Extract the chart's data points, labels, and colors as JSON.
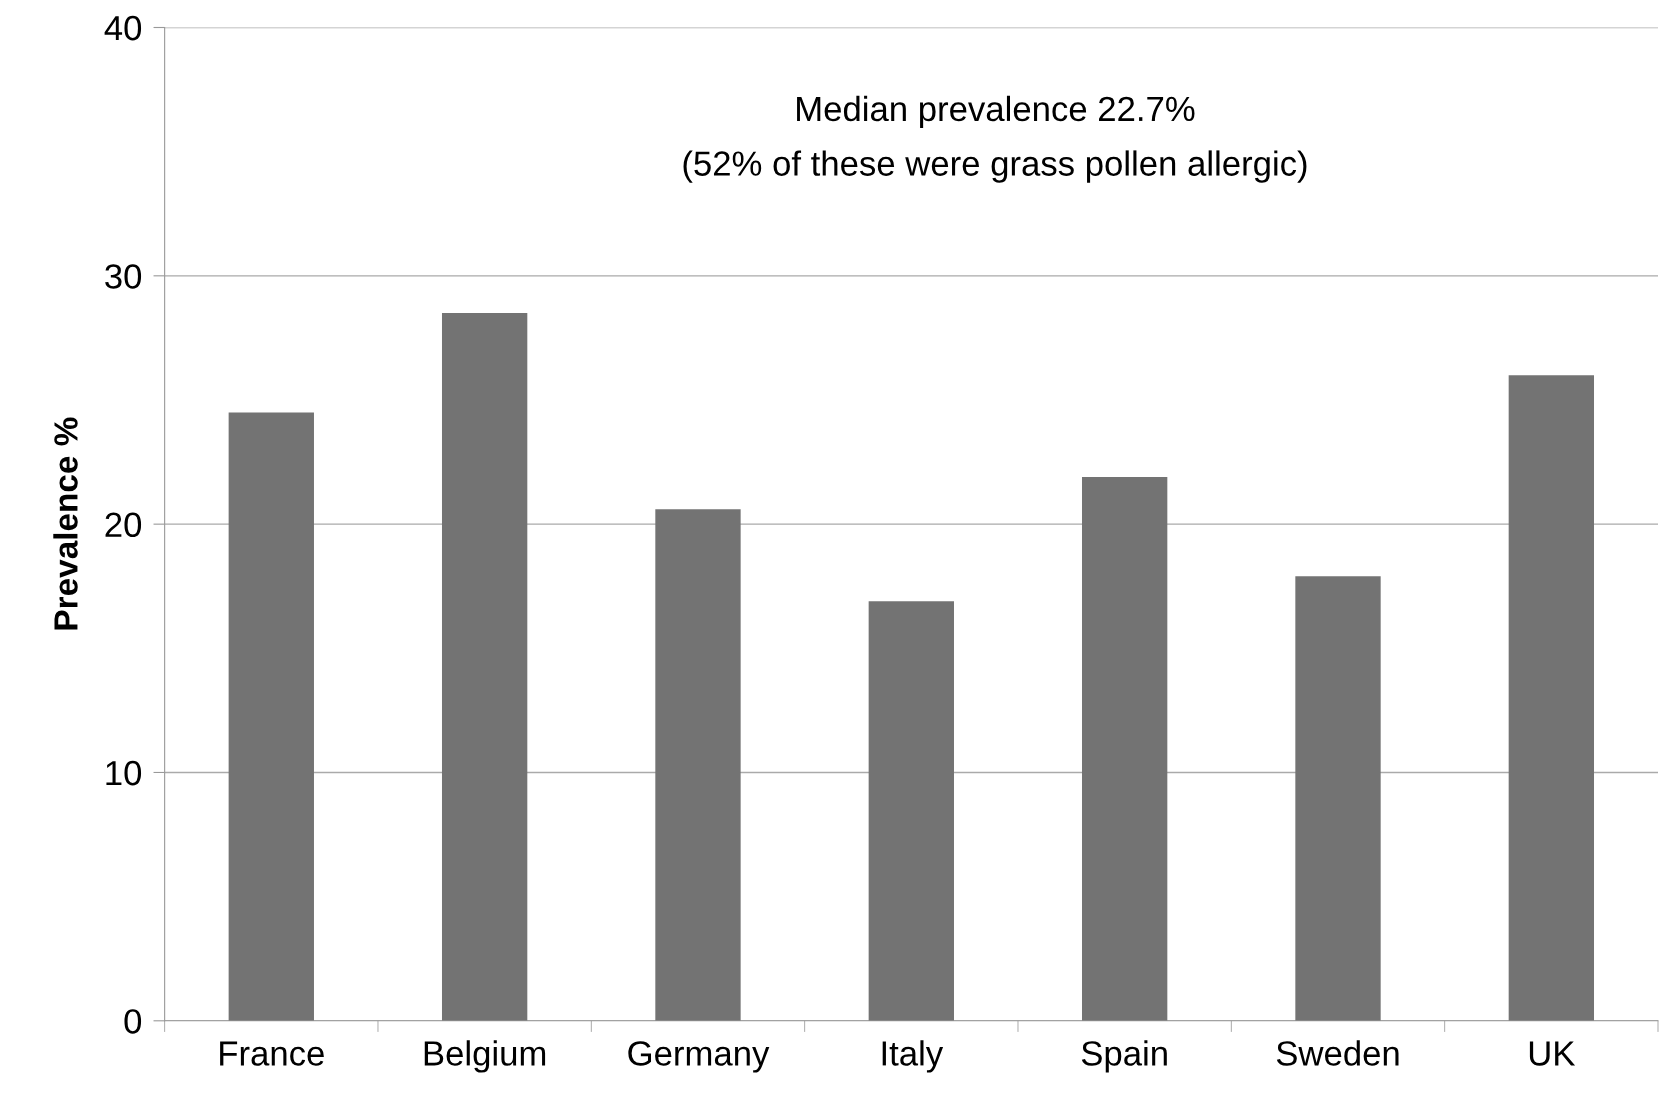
{
  "chart_data": {
    "type": "bar",
    "ylabel": "Prevalence %",
    "categories": [
      "France",
      "Belgium",
      "Germany",
      "Italy",
      "Spain",
      "Sweden",
      "UK"
    ],
    "values": [
      24.5,
      28.5,
      20.6,
      16.9,
      21.9,
      17.9,
      26.0
    ],
    "color": "#737373",
    "ylim": [
      0,
      40
    ],
    "yticks": [
      0,
      10,
      20,
      30,
      40
    ],
    "grid": "y",
    "annotations": [
      "Median prevalence 22.7%",
      "(52% of these were grass pollen allergic)"
    ]
  }
}
